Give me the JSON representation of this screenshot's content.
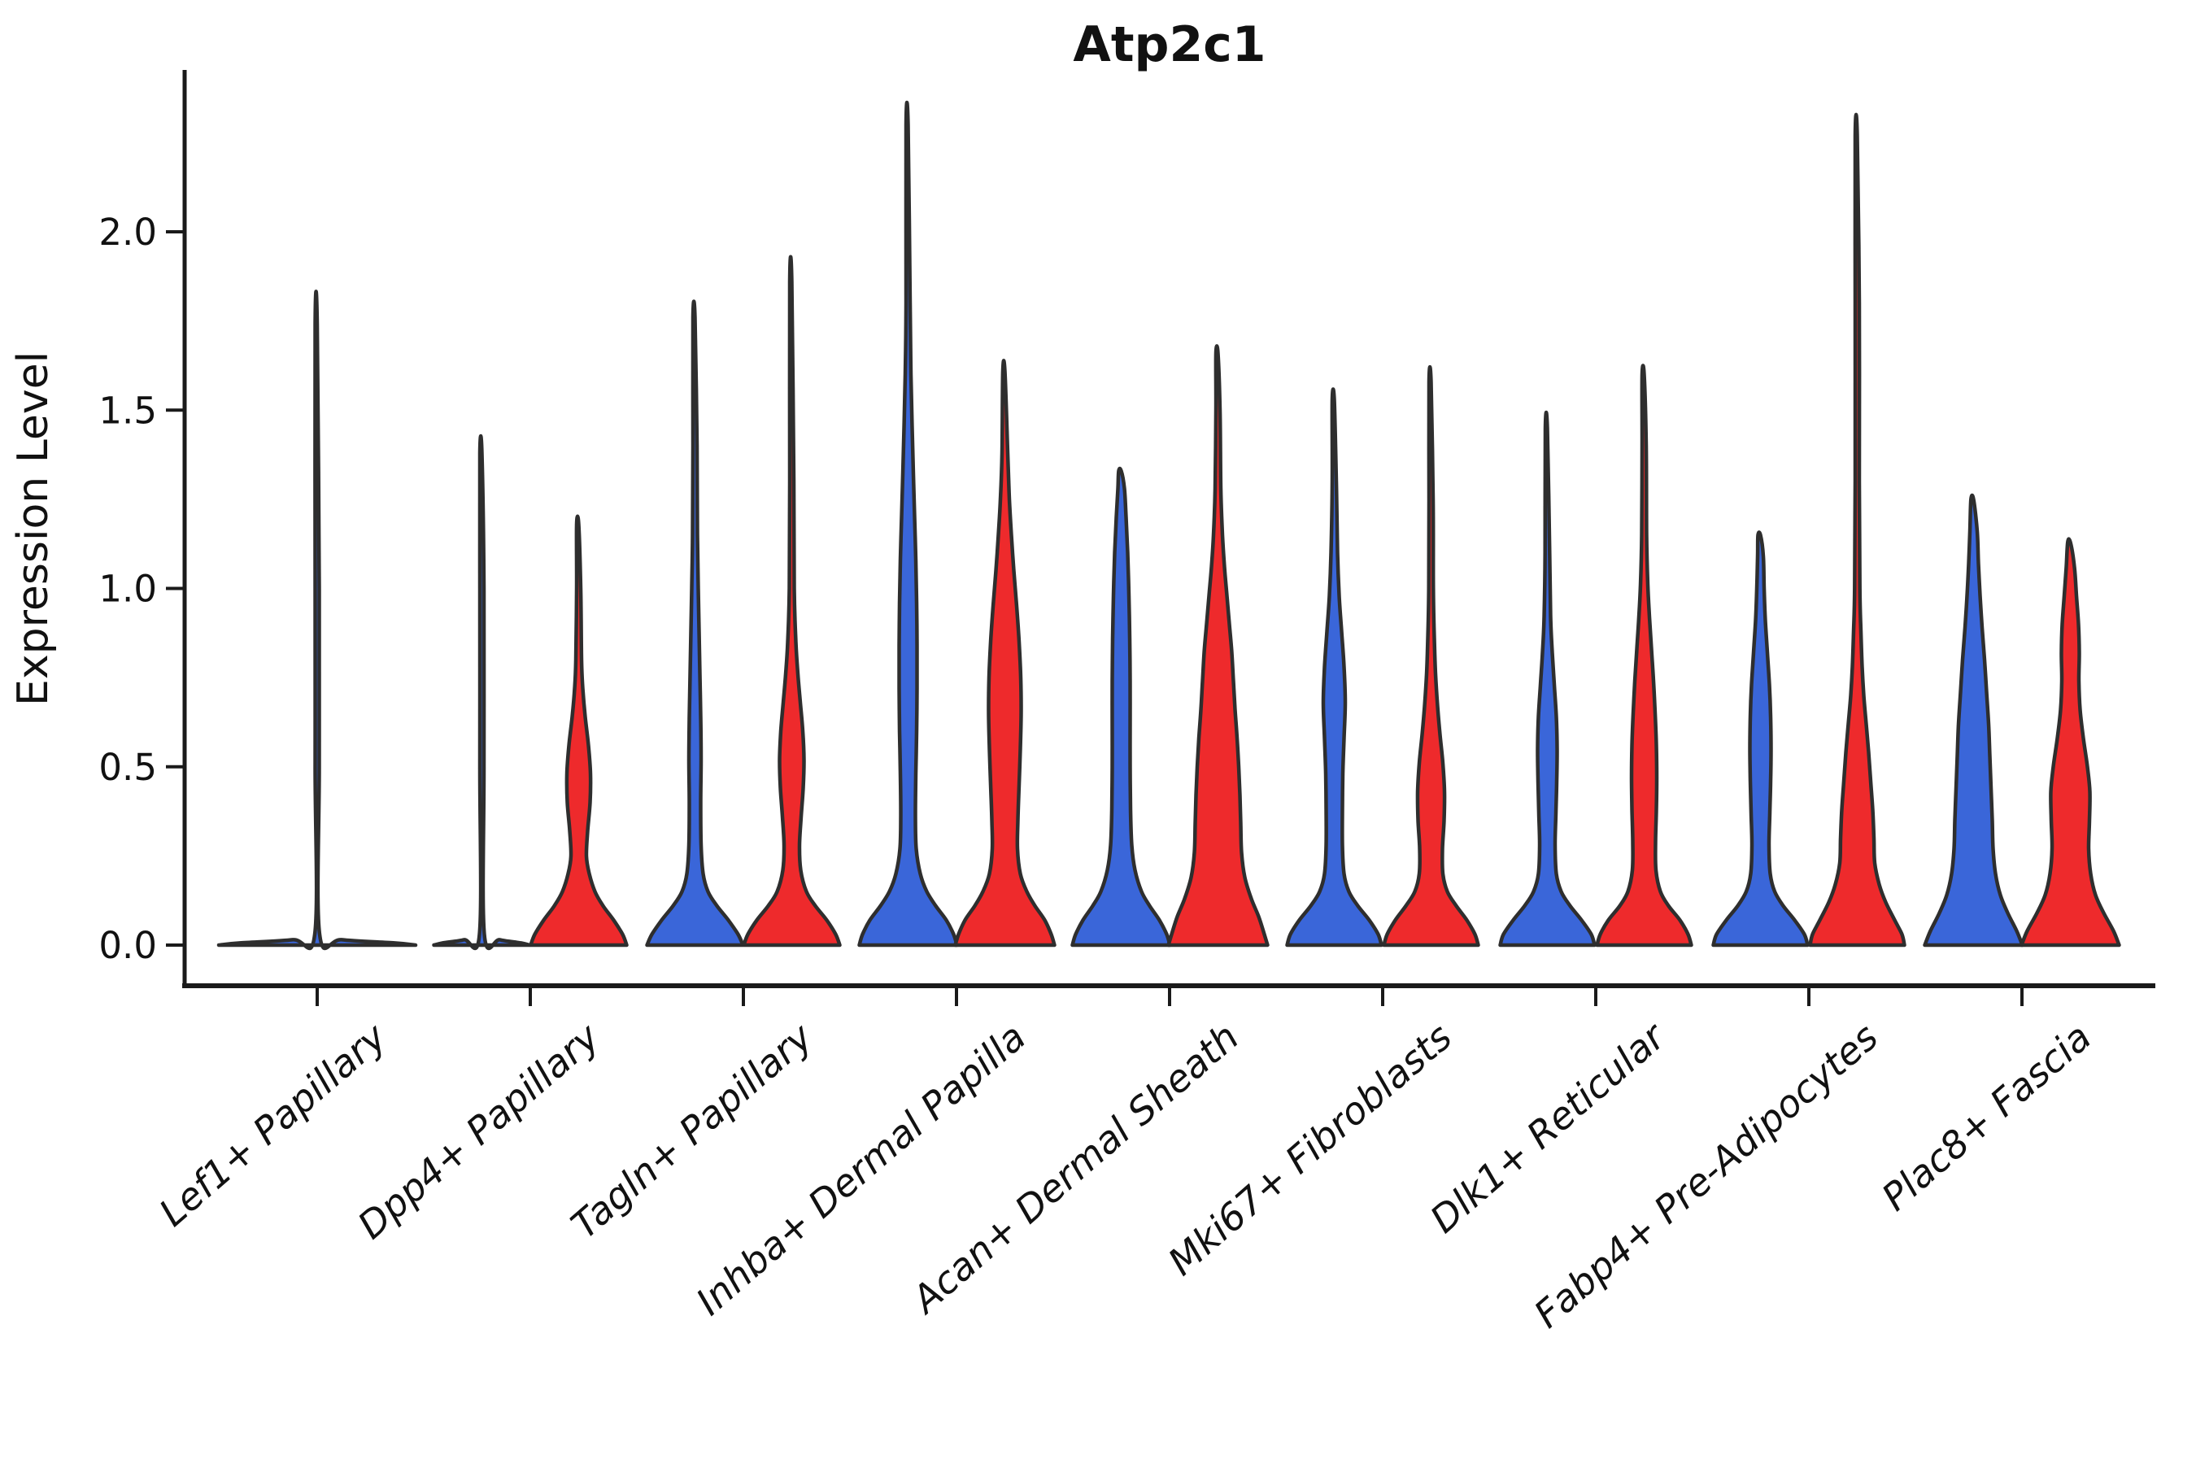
{
  "title": "Atp2c1",
  "y_axis": {
    "label": "Expression Level",
    "tick_labels": [
      "0.0",
      "0.5",
      "1.0",
      "1.5",
      "2.0"
    ]
  },
  "colors": {
    "blue": "#3A66D9",
    "red": "#EE2A2C",
    "single": "#3A66D9",
    "outline": "#2E2E2E",
    "axis": "#1a1a1a",
    "background": "#ffffff"
  },
  "chart_data": {
    "type": "violin",
    "title": "Atp2c1",
    "ylabel": "Expression Level",
    "ylim": [
      -0.11,
      2.46
    ],
    "yticks": [
      0,
      0.5,
      1.0,
      1.5,
      2.0
    ],
    "ytick_labels": [
      "0.0",
      "0.5",
      "1.0",
      "1.5",
      "2.0"
    ],
    "grid": false,
    "legend": "none (two split groups shown as blue/red violins per cluster)",
    "categories": [
      "Lef1+ Papillary",
      "Dpp4+ Papillary",
      "Tagln+ Papillary",
      "Inhba+ Dermal Papilla",
      "Acan+ Dermal Sheath",
      "Mki67+ Fibroblasts",
      "Dlk1+ Reticular",
      "Fabp4+ Pre-Adipocytes",
      "Plac8+ Fascia"
    ],
    "series_colors": {
      "blue": "#3A66D9",
      "red": "#EE2A2C",
      "single": "#3A66D9"
    },
    "violin_note": "profile = [expression_value, half_width_px]; peak = max expression reached by thin density spike",
    "violins": [
      {
        "category_index": 0,
        "group": "single",
        "peak": 1.74,
        "profile": [
          [
            0,
            121
          ],
          [
            0.006,
            95
          ],
          [
            0.015,
            30
          ],
          [
            0.03,
            3
          ],
          [
            0.5,
            2.5
          ],
          [
            1.0,
            2.5
          ],
          [
            1.74,
            2.5
          ]
        ]
      },
      {
        "category_index": 1,
        "group": "blue",
        "peak": 1.38,
        "profile": [
          [
            0,
            59
          ],
          [
            0.006,
            48
          ],
          [
            0.015,
            22
          ],
          [
            0.03,
            3
          ],
          [
            0.5,
            2.5
          ],
          [
            1.0,
            2.5
          ],
          [
            1.38,
            2.5
          ]
        ]
      },
      {
        "category_index": 1,
        "group": "red",
        "peak": 1.18,
        "profile": [
          [
            0,
            59
          ],
          [
            0.03,
            54
          ],
          [
            0.07,
            43
          ],
          [
            0.11,
            30
          ],
          [
            0.15,
            20
          ],
          [
            0.2,
            13
          ],
          [
            0.25,
            9.5
          ],
          [
            0.32,
            11
          ],
          [
            0.4,
            14
          ],
          [
            0.48,
            14.5
          ],
          [
            0.56,
            12
          ],
          [
            0.64,
            8
          ],
          [
            0.72,
            5
          ],
          [
            0.8,
            3.5
          ],
          [
            1.0,
            2.5
          ],
          [
            1.18,
            2.5
          ]
        ]
      },
      {
        "category_index": 2,
        "group": "blue",
        "peak": 1.76,
        "profile": [
          [
            0,
            59
          ],
          [
            0.03,
            53
          ],
          [
            0.07,
            41
          ],
          [
            0.11,
            27
          ],
          [
            0.15,
            16
          ],
          [
            0.2,
            10
          ],
          [
            0.28,
            7.5
          ],
          [
            0.4,
            7
          ],
          [
            0.52,
            7.5
          ],
          [
            0.64,
            7
          ],
          [
            0.76,
            6
          ],
          [
            0.88,
            5
          ],
          [
            1.0,
            4
          ],
          [
            1.15,
            3
          ],
          [
            1.4,
            2.5
          ],
          [
            1.76,
            2.5
          ]
        ]
      },
      {
        "category_index": 2,
        "group": "red",
        "peak": 1.86,
        "profile": [
          [
            0,
            59
          ],
          [
            0.03,
            54
          ],
          [
            0.07,
            43
          ],
          [
            0.11,
            29
          ],
          [
            0.15,
            18
          ],
          [
            0.21,
            11
          ],
          [
            0.28,
            9.5
          ],
          [
            0.36,
            11.5
          ],
          [
            0.44,
            14
          ],
          [
            0.52,
            15
          ],
          [
            0.6,
            13.5
          ],
          [
            0.68,
            10.5
          ],
          [
            0.76,
            7.5
          ],
          [
            0.85,
            5
          ],
          [
            1.0,
            3
          ],
          [
            1.3,
            2.5
          ],
          [
            1.86,
            2.5
          ]
        ]
      },
      {
        "category_index": 3,
        "group": "blue",
        "peak": 2.3,
        "profile": [
          [
            0,
            60
          ],
          [
            0.03,
            56
          ],
          [
            0.07,
            47
          ],
          [
            0.11,
            34
          ],
          [
            0.15,
            23
          ],
          [
            0.2,
            15
          ],
          [
            0.27,
            10
          ],
          [
            0.36,
            9
          ],
          [
            0.48,
            9.5
          ],
          [
            0.6,
            10.5
          ],
          [
            0.72,
            11
          ],
          [
            0.84,
            11
          ],
          [
            0.96,
            10.5
          ],
          [
            1.08,
            9.5
          ],
          [
            1.2,
            8
          ],
          [
            1.32,
            6.5
          ],
          [
            1.45,
            5
          ],
          [
            1.6,
            3.5
          ],
          [
            1.8,
            2.5
          ],
          [
            2.3,
            2.5
          ]
        ]
      },
      {
        "category_index": 3,
        "group": "red",
        "peak": 1.61,
        "profile": [
          [
            0,
            61
          ],
          [
            0.03,
            57
          ],
          [
            0.07,
            49
          ],
          [
            0.11,
            37
          ],
          [
            0.15,
            27
          ],
          [
            0.2,
            19
          ],
          [
            0.27,
            15.5
          ],
          [
            0.35,
            16
          ],
          [
            0.45,
            17.5
          ],
          [
            0.55,
            19
          ],
          [
            0.65,
            20
          ],
          [
            0.75,
            19.5
          ],
          [
            0.85,
            17.5
          ],
          [
            0.95,
            14.5
          ],
          [
            1.05,
            11
          ],
          [
            1.15,
            8
          ],
          [
            1.25,
            5.5
          ],
          [
            1.38,
            3.5
          ],
          [
            1.61,
            2.5
          ]
        ]
      },
      {
        "category_index": 4,
        "group": "blue",
        "peak": 1.33,
        "profile": [
          [
            0,
            60
          ],
          [
            0.03,
            56
          ],
          [
            0.07,
            47
          ],
          [
            0.11,
            35
          ],
          [
            0.15,
            25
          ],
          [
            0.21,
            17
          ],
          [
            0.28,
            13
          ],
          [
            0.38,
            11.5
          ],
          [
            0.5,
            11
          ],
          [
            0.62,
            11
          ],
          [
            0.74,
            11
          ],
          [
            0.86,
            10.5
          ],
          [
            0.98,
            9.5
          ],
          [
            1.1,
            8
          ],
          [
            1.2,
            6
          ],
          [
            1.28,
            4
          ],
          [
            1.33,
            3
          ]
        ]
      },
      {
        "category_index": 4,
        "group": "red",
        "peak": 1.66,
        "profile": [
          [
            0,
            61
          ],
          [
            0.03,
            57
          ],
          [
            0.08,
            50
          ],
          [
            0.13,
            41
          ],
          [
            0.19,
            33
          ],
          [
            0.26,
            29
          ],
          [
            0.34,
            28
          ],
          [
            0.42,
            27
          ],
          [
            0.5,
            25.5
          ],
          [
            0.58,
            23.5
          ],
          [
            0.66,
            21
          ],
          [
            0.74,
            19
          ],
          [
            0.82,
            17
          ],
          [
            0.9,
            14
          ],
          [
            0.98,
            11
          ],
          [
            1.06,
            8
          ],
          [
            1.15,
            5.5
          ],
          [
            1.28,
            3.5
          ],
          [
            1.5,
            2.5
          ],
          [
            1.66,
            2.5
          ]
        ]
      },
      {
        "category_index": 5,
        "group": "blue",
        "peak": 1.53,
        "profile": [
          [
            0,
            58
          ],
          [
            0.03,
            54
          ],
          [
            0.07,
            43
          ],
          [
            0.11,
            29
          ],
          [
            0.15,
            18
          ],
          [
            0.2,
            12
          ],
          [
            0.28,
            10
          ],
          [
            0.38,
            10
          ],
          [
            0.48,
            10.5
          ],
          [
            0.58,
            12
          ],
          [
            0.68,
            13.5
          ],
          [
            0.78,
            12
          ],
          [
            0.88,
            9
          ],
          [
            0.98,
            6
          ],
          [
            1.1,
            4
          ],
          [
            1.3,
            2.5
          ],
          [
            1.53,
            2.5
          ]
        ]
      },
      {
        "category_index": 5,
        "group": "red",
        "peak": 1.58,
        "profile": [
          [
            0,
            58
          ],
          [
            0.03,
            54
          ],
          [
            0.07,
            44
          ],
          [
            0.11,
            31
          ],
          [
            0.15,
            20
          ],
          [
            0.2,
            14.5
          ],
          [
            0.27,
            14
          ],
          [
            0.35,
            16
          ],
          [
            0.43,
            16.5
          ],
          [
            0.51,
            14.5
          ],
          [
            0.59,
            11
          ],
          [
            0.67,
            8
          ],
          [
            0.76,
            5.5
          ],
          [
            0.86,
            4
          ],
          [
            1.0,
            2.8
          ],
          [
            1.25,
            2.5
          ],
          [
            1.58,
            2.5
          ]
        ]
      },
      {
        "category_index": 6,
        "group": "blue",
        "peak": 1.45,
        "profile": [
          [
            0,
            58
          ],
          [
            0.03,
            54
          ],
          [
            0.07,
            42
          ],
          [
            0.11,
            28
          ],
          [
            0.15,
            17
          ],
          [
            0.2,
            11
          ],
          [
            0.28,
            9.5
          ],
          [
            0.37,
            10.5
          ],
          [
            0.46,
            11.5
          ],
          [
            0.55,
            12
          ],
          [
            0.64,
            11
          ],
          [
            0.73,
            8.5
          ],
          [
            0.82,
            6
          ],
          [
            0.92,
            4
          ],
          [
            1.1,
            2.8
          ],
          [
            1.45,
            2.5
          ]
        ]
      },
      {
        "category_index": 6,
        "group": "red",
        "peak": 1.6,
        "profile": [
          [
            0,
            58
          ],
          [
            0.03,
            54
          ],
          [
            0.07,
            44
          ],
          [
            0.11,
            30
          ],
          [
            0.15,
            20
          ],
          [
            0.21,
            14.5
          ],
          [
            0.29,
            14
          ],
          [
            0.38,
            15
          ],
          [
            0.47,
            15.5
          ],
          [
            0.56,
            15
          ],
          [
            0.65,
            13.5
          ],
          [
            0.74,
            11.5
          ],
          [
            0.83,
            9
          ],
          [
            0.92,
            6.5
          ],
          [
            1.01,
            4.5
          ],
          [
            1.15,
            3
          ],
          [
            1.4,
            2.5
          ],
          [
            1.6,
            2.5
          ]
        ]
      },
      {
        "category_index": 7,
        "group": "blue",
        "peak": 1.15,
        "profile": [
          [
            0,
            58
          ],
          [
            0.03,
            54
          ],
          [
            0.07,
            42
          ],
          [
            0.11,
            28
          ],
          [
            0.15,
            17.5
          ],
          [
            0.2,
            12
          ],
          [
            0.28,
            10.5
          ],
          [
            0.37,
            11.5
          ],
          [
            0.46,
            12.5
          ],
          [
            0.55,
            13
          ],
          [
            0.64,
            12.5
          ],
          [
            0.73,
            11
          ],
          [
            0.82,
            8.5
          ],
          [
            0.91,
            6
          ],
          [
            1.0,
            4.5
          ],
          [
            1.09,
            3.5
          ],
          [
            1.15,
            3
          ]
        ]
      },
      {
        "category_index": 7,
        "group": "red",
        "peak": 2.27,
        "profile": [
          [
            0,
            58
          ],
          [
            0.03,
            55
          ],
          [
            0.07,
            46
          ],
          [
            0.12,
            35
          ],
          [
            0.17,
            27
          ],
          [
            0.23,
            21.5
          ],
          [
            0.3,
            20.5
          ],
          [
            0.38,
            19
          ],
          [
            0.46,
            16.5
          ],
          [
            0.54,
            14
          ],
          [
            0.62,
            11
          ],
          [
            0.7,
            8
          ],
          [
            0.78,
            6
          ],
          [
            0.88,
            4.5
          ],
          [
            1.0,
            3.2
          ],
          [
            1.3,
            2.5
          ],
          [
            1.8,
            2.5
          ],
          [
            2.27,
            2.5
          ]
        ]
      },
      {
        "category_index": 8,
        "group": "blue",
        "peak": 1.25,
        "profile": [
          [
            0,
            60
          ],
          [
            0.04,
            53
          ],
          [
            0.09,
            42
          ],
          [
            0.14,
            33
          ],
          [
            0.2,
            27
          ],
          [
            0.27,
            24
          ],
          [
            0.35,
            23
          ],
          [
            0.44,
            21.5
          ],
          [
            0.53,
            20
          ],
          [
            0.62,
            18.5
          ],
          [
            0.71,
            16
          ],
          [
            0.8,
            13.5
          ],
          [
            0.89,
            10.5
          ],
          [
            0.98,
            8
          ],
          [
            1.07,
            6
          ],
          [
            1.16,
            4.5
          ],
          [
            1.25,
            3.2
          ]
        ]
      },
      {
        "category_index": 8,
        "group": "red",
        "peak": 1.13,
        "profile": [
          [
            0,
            60
          ],
          [
            0.04,
            53
          ],
          [
            0.09,
            41
          ],
          [
            0.14,
            31
          ],
          [
            0.2,
            25
          ],
          [
            0.27,
            22.5
          ],
          [
            0.35,
            23.5
          ],
          [
            0.43,
            24
          ],
          [
            0.5,
            21
          ],
          [
            0.58,
            16
          ],
          [
            0.66,
            12
          ],
          [
            0.74,
            10.5
          ],
          [
            0.82,
            11
          ],
          [
            0.9,
            10
          ],
          [
            0.98,
            7.5
          ],
          [
            1.06,
            5
          ],
          [
            1.13,
            3.2
          ]
        ]
      }
    ]
  }
}
